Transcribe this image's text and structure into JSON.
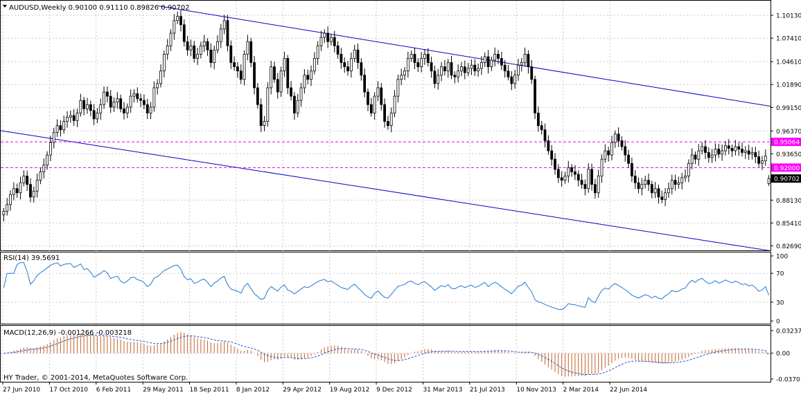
{
  "header": {
    "symbol_line": "AUDUSD,Weekly  0.90100 0.91110 0.89826 0.90702"
  },
  "indicators": {
    "rsi_label": "RSI(14) 39.5691",
    "macd_label": "MACD(12,26,9) -0.001266 -0.003218"
  },
  "footer": {
    "copyright": "HY Trader, © 2001-2014, MetaQuotes Software Corp."
  },
  "colors": {
    "candle": "#000000",
    "trend_line": "#0000c8",
    "level_line": "#e000e0",
    "level_label_bg": "#ff00ff",
    "current_label_bg": "#000000",
    "rsi_line": "#1e78d2",
    "macd_hist": "#c0602a",
    "macd_signal": "#2050d0"
  },
  "chart_data": [
    {
      "type": "candlestick",
      "panel": "price",
      "title": "AUDUSD,Weekly",
      "ohlc_last": {
        "open": 0.901,
        "high": 0.9111,
        "low": 0.89826,
        "close": 0.90702
      },
      "y_ticks": [
        "1.10130",
        "1.07410",
        "1.04610",
        "1.01890",
        "0.99150",
        "0.96370",
        "0.93650",
        "0.88130",
        "0.85410",
        "0.82690"
      ],
      "ylim": [
        0.8215,
        1.1195
      ],
      "x_ticks": [
        "27 Jun 2010",
        "17 Oct 2010",
        "6 Feb 2011",
        "29 May 2011",
        "18 Sep 2011",
        "8 Jan 2012",
        "29 Apr 2012",
        "19 Aug 2012",
        "9 Dec 2012",
        "31 Mar 2013",
        "21 Jul 2013",
        "10 Nov 2013",
        "2 Mar 2014",
        "22 Jun 2014"
      ],
      "levels": [
        {
          "label": "0.95064",
          "value": 0.95064
        },
        {
          "label": "0.92000",
          "value": 0.92
        }
      ],
      "current_price_label": "0.90702",
      "current_price": 0.90702,
      "closes": [
        0.868,
        0.876,
        0.888,
        0.895,
        0.89,
        0.902,
        0.91,
        0.9,
        0.885,
        0.892,
        0.905,
        0.915,
        0.923,
        0.935,
        0.95,
        0.962,
        0.97,
        0.965,
        0.975,
        0.98,
        0.982,
        0.976,
        0.985,
        1.0,
        0.99,
        0.995,
        0.988,
        0.978,
        0.985,
        0.995,
        1.01,
        1.005,
        0.992,
        0.998,
        1.002,
        0.99,
        0.985,
        0.992,
        1.005,
        1.008,
        1.002,
        1.0,
        0.995,
        0.985,
        0.992,
        1.015,
        1.02,
        1.035,
        1.055,
        1.065,
        1.08,
        1.095,
        1.1,
        1.09,
        1.07,
        1.06,
        1.065,
        1.05,
        1.055,
        1.065,
        1.07,
        1.06,
        1.045,
        1.06,
        1.07,
        1.085,
        1.095,
        1.065,
        1.045,
        1.04,
        1.035,
        1.025,
        1.055,
        1.07,
        1.045,
        1.015,
        0.995,
        0.97,
        0.975,
        1.015,
        1.04,
        1.025,
        1.01,
        1.035,
        1.05,
        1.015,
        1.005,
        0.985,
        1.0,
        1.015,
        1.03,
        1.025,
        1.035,
        1.05,
        1.065,
        1.075,
        1.08,
        1.07,
        1.075,
        1.065,
        1.055,
        1.045,
        1.04,
        1.035,
        1.05,
        1.06,
        1.045,
        1.03,
        1.01,
        0.995,
        0.985,
        1.005,
        1.015,
        0.995,
        0.975,
        0.97,
        0.985,
        1.005,
        1.025,
        1.03,
        1.035,
        1.05,
        1.055,
        1.045,
        1.04,
        1.05,
        1.055,
        1.045,
        1.035,
        1.02,
        1.03,
        1.04,
        1.035,
        1.045,
        1.03,
        1.028,
        1.035,
        1.04,
        1.033,
        1.038,
        1.042,
        1.035,
        1.038,
        1.045,
        1.052,
        1.04,
        1.048,
        1.055,
        1.05,
        1.042,
        1.035,
        1.028,
        1.02,
        1.03,
        1.042,
        1.045,
        1.055,
        1.04,
        1.025,
        0.985,
        0.97,
        0.965,
        0.952,
        0.94,
        0.93,
        0.918,
        0.908,
        0.905,
        0.91,
        0.92,
        0.915,
        0.912,
        0.905,
        0.9,
        0.895,
        0.918,
        0.9,
        0.89,
        0.91,
        0.93,
        0.94,
        0.935,
        0.95,
        0.96,
        0.952,
        0.945,
        0.935,
        0.925,
        0.91,
        0.902,
        0.895,
        0.9,
        0.905,
        0.9,
        0.89,
        0.895,
        0.885,
        0.882,
        0.89,
        0.895,
        0.905,
        0.9,
        0.902,
        0.908,
        0.91,
        0.925,
        0.935,
        0.93,
        0.94,
        0.945,
        0.938,
        0.932,
        0.935,
        0.942,
        0.936,
        0.94,
        0.946,
        0.943,
        0.94,
        0.945,
        0.942,
        0.938,
        0.94,
        0.936,
        0.938,
        0.933,
        0.925,
        0.928,
        0.934,
        0.907
      ]
    },
    {
      "type": "line",
      "panel": "rsi",
      "title": "RSI(14) 39.5691",
      "y_ticks": [
        "100",
        "70",
        "30",
        "0"
      ],
      "ylim": [
        0,
        100
      ],
      "last_value": 39.5691
    },
    {
      "type": "bar",
      "panel": "macd",
      "title": "MACD(12,26,9) -0.001266 -0.003218",
      "y_ticks": [
        "0.032377",
        "0.00",
        "-0.037011"
      ],
      "ylim": [
        -0.037011,
        0.032377
      ],
      "main_last": -0.001266,
      "signal_last": -0.003218
    }
  ]
}
